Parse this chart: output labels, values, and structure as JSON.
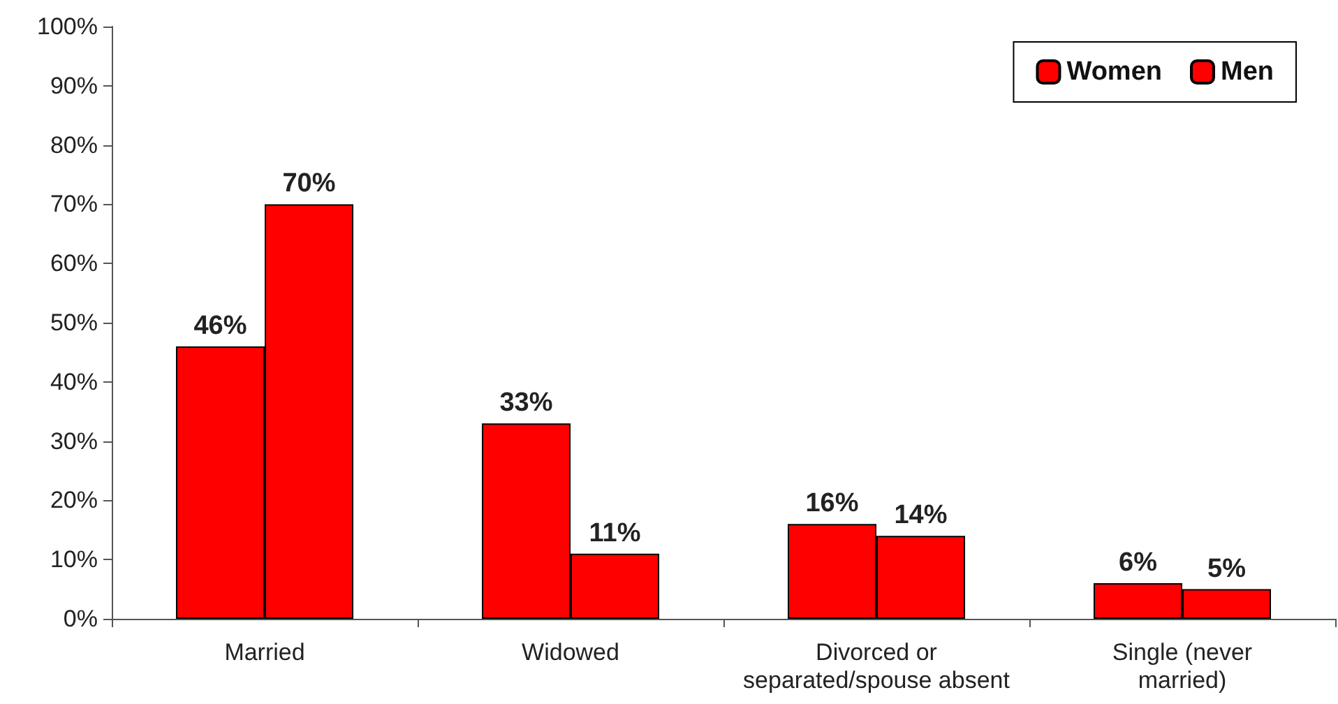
{
  "chart_data": {
    "type": "bar",
    "categories": [
      "Married",
      "Widowed",
      "Divorced or\nseparated/spouse absent",
      "Single (never\nmarried)"
    ],
    "series": [
      {
        "name": "Women",
        "color": "#ff0000",
        "values": [
          46,
          33,
          16,
          6
        ],
        "value_labels": [
          "46%",
          "33%",
          "16%",
          "6%"
        ]
      },
      {
        "name": "Men",
        "color": "#ff0000",
        "values": [
          70,
          11,
          14,
          5
        ],
        "value_labels": [
          "70%",
          "11%",
          "14%",
          "5%"
        ]
      }
    ],
    "ylim": [
      0,
      100
    ],
    "yticks": [
      {
        "value": 0,
        "label": "0%"
      },
      {
        "value": 10,
        "label": "10%"
      },
      {
        "value": 20,
        "label": "20%"
      },
      {
        "value": 30,
        "label": "30%"
      },
      {
        "value": 40,
        "label": "40%"
      },
      {
        "value": 50,
        "label": "50%"
      },
      {
        "value": 60,
        "label": "60%"
      },
      {
        "value": 70,
        "label": "70%"
      },
      {
        "value": 80,
        "label": "80%"
      },
      {
        "value": 90,
        "label": "90%"
      },
      {
        "value": 100,
        "label": "100%"
      }
    ],
    "grid": false,
    "legend": "top right"
  }
}
